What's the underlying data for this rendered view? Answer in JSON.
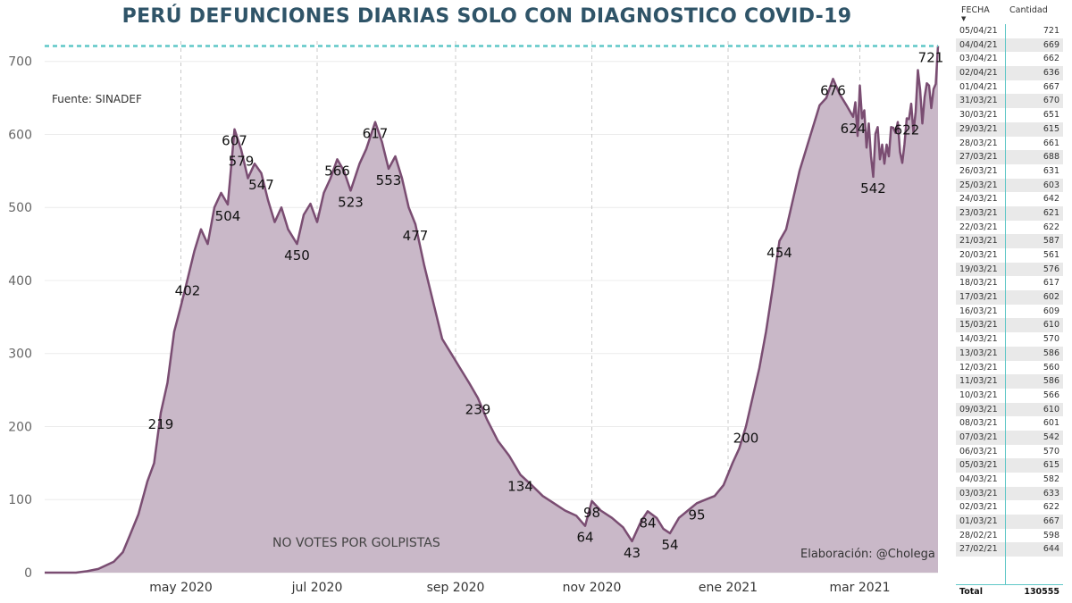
{
  "title": "PERÚ DEFUNCIONES DIARIAS SOLO CON DIAGNOSTICO COVID-19",
  "source_note": "Fuente: SINADEF",
  "watermark": "NO VOTES POR GOLPISTAS",
  "credit": "Elaboración: @Cholega",
  "colors": {
    "line": "#7a4d72",
    "fill": "#c9b8c8",
    "reference_line": "#5fc7c7",
    "title": "#2f5468"
  },
  "chart_data": {
    "type": "area",
    "title": "PERÚ DEFUNCIONES DIARIAS SOLO CON DIAGNOSTICO COVID-19",
    "ylim": [
      0,
      740
    ],
    "xlim": [
      "2020-03-01",
      "2021-04-05"
    ],
    "y_ticks": [
      0,
      100,
      200,
      300,
      400,
      500,
      600,
      700
    ],
    "x_ticks": [
      {
        "date": "2020-05-01",
        "label": "may 2020"
      },
      {
        "date": "2020-07-01",
        "label": "jul 2020"
      },
      {
        "date": "2020-09-01",
        "label": "sep 2020"
      },
      {
        "date": "2020-11-01",
        "label": "nov 2020"
      },
      {
        "date": "2021-01-01",
        "label": "ene 2021"
      },
      {
        "date": "2021-03-01",
        "label": "mar 2021"
      }
    ],
    "grid": "vertical dashed at x ticks, horizontal light",
    "reference_line": {
      "y": 721,
      "style": "dashed"
    },
    "series": [
      {
        "points": [
          [
            "2020-03-01",
            0
          ],
          [
            "2020-03-15",
            0
          ],
          [
            "2020-03-20",
            2
          ],
          [
            "2020-03-25",
            5
          ],
          [
            "2020-04-01",
            15
          ],
          [
            "2020-04-05",
            28
          ],
          [
            "2020-04-08",
            50
          ],
          [
            "2020-04-12",
            80
          ],
          [
            "2020-04-16",
            125
          ],
          [
            "2020-04-19",
            150
          ],
          [
            "2020-04-22",
            219
          ],
          [
            "2020-04-25",
            260
          ],
          [
            "2020-04-28",
            330
          ],
          [
            "2020-05-01",
            365
          ],
          [
            "2020-05-04",
            402
          ],
          [
            "2020-05-07",
            440
          ],
          [
            "2020-05-10",
            470
          ],
          [
            "2020-05-13",
            450
          ],
          [
            "2020-05-16",
            500
          ],
          [
            "2020-05-19",
            520
          ],
          [
            "2020-05-22",
            504
          ],
          [
            "2020-05-25",
            607
          ],
          [
            "2020-05-28",
            579
          ],
          [
            "2020-05-31",
            540
          ],
          [
            "2020-06-03",
            560
          ],
          [
            "2020-06-06",
            547
          ],
          [
            "2020-06-09",
            510
          ],
          [
            "2020-06-12",
            480
          ],
          [
            "2020-06-15",
            500
          ],
          [
            "2020-06-18",
            470
          ],
          [
            "2020-06-22",
            450
          ],
          [
            "2020-06-25",
            490
          ],
          [
            "2020-06-28",
            505
          ],
          [
            "2020-07-01",
            480
          ],
          [
            "2020-07-04",
            520
          ],
          [
            "2020-07-07",
            540
          ],
          [
            "2020-07-10",
            566
          ],
          [
            "2020-07-13",
            550
          ],
          [
            "2020-07-16",
            523
          ],
          [
            "2020-07-20",
            560
          ],
          [
            "2020-07-23",
            580
          ],
          [
            "2020-07-27",
            617
          ],
          [
            "2020-07-30",
            590
          ],
          [
            "2020-08-02",
            553
          ],
          [
            "2020-08-05",
            570
          ],
          [
            "2020-08-08",
            540
          ],
          [
            "2020-08-11",
            500
          ],
          [
            "2020-08-14",
            477
          ],
          [
            "2020-08-18",
            420
          ],
          [
            "2020-08-22",
            370
          ],
          [
            "2020-08-26",
            320
          ],
          [
            "2020-08-30",
            300
          ],
          [
            "2020-09-03",
            280
          ],
          [
            "2020-09-07",
            260
          ],
          [
            "2020-09-11",
            239
          ],
          [
            "2020-09-15",
            210
          ],
          [
            "2020-09-20",
            180
          ],
          [
            "2020-09-25",
            160
          ],
          [
            "2020-09-30",
            134
          ],
          [
            "2020-10-05",
            120
          ],
          [
            "2020-10-10",
            105
          ],
          [
            "2020-10-15",
            95
          ],
          [
            "2020-10-20",
            85
          ],
          [
            "2020-10-25",
            78
          ],
          [
            "2020-10-29",
            64
          ],
          [
            "2020-11-01",
            98
          ],
          [
            "2020-11-05",
            85
          ],
          [
            "2020-11-10",
            75
          ],
          [
            "2020-11-15",
            62
          ],
          [
            "2020-11-19",
            43
          ],
          [
            "2020-11-23",
            70
          ],
          [
            "2020-11-26",
            84
          ],
          [
            "2020-11-30",
            75
          ],
          [
            "2020-12-03",
            60
          ],
          [
            "2020-12-06",
            54
          ],
          [
            "2020-12-10",
            75
          ],
          [
            "2020-12-14",
            85
          ],
          [
            "2020-12-18",
            95
          ],
          [
            "2020-12-22",
            100
          ],
          [
            "2020-12-26",
            105
          ],
          [
            "2020-12-30",
            120
          ],
          [
            "2021-01-03",
            150
          ],
          [
            "2021-01-06",
            170
          ],
          [
            "2021-01-09",
            200
          ],
          [
            "2021-01-12",
            240
          ],
          [
            "2021-01-15",
            280
          ],
          [
            "2021-01-18",
            330
          ],
          [
            "2021-01-21",
            390
          ],
          [
            "2021-01-24",
            454
          ],
          [
            "2021-01-27",
            470
          ],
          [
            "2021-01-30",
            510
          ],
          [
            "2021-02-02",
            550
          ],
          [
            "2021-02-05",
            580
          ],
          [
            "2021-02-08",
            610
          ],
          [
            "2021-02-11",
            640
          ],
          [
            "2021-02-14",
            650
          ],
          [
            "2021-02-17",
            676
          ],
          [
            "2021-02-20",
            655
          ],
          [
            "2021-02-23",
            640
          ],
          [
            "2021-02-26",
            624
          ],
          [
            "2021-02-27",
            644
          ],
          [
            "2021-02-28",
            598
          ],
          [
            "2021-03-01",
            667
          ],
          [
            "2021-03-02",
            622
          ],
          [
            "2021-03-03",
            633
          ],
          [
            "2021-03-04",
            582
          ],
          [
            "2021-03-05",
            615
          ],
          [
            "2021-03-06",
            570
          ],
          [
            "2021-03-07",
            542
          ],
          [
            "2021-03-08",
            601
          ],
          [
            "2021-03-09",
            610
          ],
          [
            "2021-03-10",
            566
          ],
          [
            "2021-03-11",
            586
          ],
          [
            "2021-03-12",
            560
          ],
          [
            "2021-03-13",
            586
          ],
          [
            "2021-03-14",
            570
          ],
          [
            "2021-03-15",
            610
          ],
          [
            "2021-03-16",
            609
          ],
          [
            "2021-03-17",
            602
          ],
          [
            "2021-03-18",
            617
          ],
          [
            "2021-03-19",
            576
          ],
          [
            "2021-03-20",
            561
          ],
          [
            "2021-03-21",
            587
          ],
          [
            "2021-03-22",
            622
          ],
          [
            "2021-03-23",
            621
          ],
          [
            "2021-03-24",
            642
          ],
          [
            "2021-03-25",
            603
          ],
          [
            "2021-03-26",
            631
          ],
          [
            "2021-03-27",
            688
          ],
          [
            "2021-03-28",
            661
          ],
          [
            "2021-03-29",
            615
          ],
          [
            "2021-03-30",
            651
          ],
          [
            "2021-03-31",
            670
          ],
          [
            "2021-04-01",
            667
          ],
          [
            "2021-04-02",
            636
          ],
          [
            "2021-04-03",
            662
          ],
          [
            "2021-04-04",
            669
          ],
          [
            "2021-04-05",
            721
          ]
        ]
      }
    ],
    "annotations": [
      {
        "date": "2020-04-22",
        "value": 219
      },
      {
        "date": "2020-05-04",
        "value": 402
      },
      {
        "date": "2020-05-22",
        "value": 504
      },
      {
        "date": "2020-05-25",
        "value": 607
      },
      {
        "date": "2020-05-28",
        "value": 579
      },
      {
        "date": "2020-06-06",
        "value": 547
      },
      {
        "date": "2020-06-22",
        "value": 450
      },
      {
        "date": "2020-07-10",
        "value": 566
      },
      {
        "date": "2020-07-16",
        "value": 523
      },
      {
        "date": "2020-07-27",
        "value": 617
      },
      {
        "date": "2020-08-02",
        "value": 553
      },
      {
        "date": "2020-08-14",
        "value": 477
      },
      {
        "date": "2020-09-11",
        "value": 239
      },
      {
        "date": "2020-09-30",
        "value": 134
      },
      {
        "date": "2020-10-29",
        "value": 64
      },
      {
        "date": "2020-11-01",
        "value": 98
      },
      {
        "date": "2020-11-19",
        "value": 43
      },
      {
        "date": "2020-11-26",
        "value": 84
      },
      {
        "date": "2020-12-06",
        "value": 54
      },
      {
        "date": "2020-12-18",
        "value": 95
      },
      {
        "date": "2021-01-09",
        "value": 200
      },
      {
        "date": "2021-01-24",
        "value": 454
      },
      {
        "date": "2021-02-17",
        "value": 676
      },
      {
        "date": "2021-02-26",
        "value": 624
      },
      {
        "date": "2021-03-07",
        "value": 542
      },
      {
        "date": "2021-03-22",
        "value": 622
      },
      {
        "date": "2021-04-05",
        "value": 721
      }
    ]
  },
  "table": {
    "headers": {
      "date": "FECHA",
      "value": "Cantidad"
    },
    "rows": [
      [
        "05/04/21",
        "721"
      ],
      [
        "04/04/21",
        "669"
      ],
      [
        "03/04/21",
        "662"
      ],
      [
        "02/04/21",
        "636"
      ],
      [
        "01/04/21",
        "667"
      ],
      [
        "31/03/21",
        "670"
      ],
      [
        "30/03/21",
        "651"
      ],
      [
        "29/03/21",
        "615"
      ],
      [
        "28/03/21",
        "661"
      ],
      [
        "27/03/21",
        "688"
      ],
      [
        "26/03/21",
        "631"
      ],
      [
        "25/03/21",
        "603"
      ],
      [
        "24/03/21",
        "642"
      ],
      [
        "23/03/21",
        "621"
      ],
      [
        "22/03/21",
        "622"
      ],
      [
        "21/03/21",
        "587"
      ],
      [
        "20/03/21",
        "561"
      ],
      [
        "19/03/21",
        "576"
      ],
      [
        "18/03/21",
        "617"
      ],
      [
        "17/03/21",
        "602"
      ],
      [
        "16/03/21",
        "609"
      ],
      [
        "15/03/21",
        "610"
      ],
      [
        "14/03/21",
        "570"
      ],
      [
        "13/03/21",
        "586"
      ],
      [
        "12/03/21",
        "560"
      ],
      [
        "11/03/21",
        "586"
      ],
      [
        "10/03/21",
        "566"
      ],
      [
        "09/03/21",
        "610"
      ],
      [
        "08/03/21",
        "601"
      ],
      [
        "07/03/21",
        "542"
      ],
      [
        "06/03/21",
        "570"
      ],
      [
        "05/03/21",
        "615"
      ],
      [
        "04/03/21",
        "582"
      ],
      [
        "03/03/21",
        "633"
      ],
      [
        "02/03/21",
        "622"
      ],
      [
        "01/03/21",
        "667"
      ],
      [
        "28/02/21",
        "598"
      ],
      [
        "27/02/21",
        "644"
      ]
    ],
    "total_label": "Total",
    "total_value": "130555"
  }
}
